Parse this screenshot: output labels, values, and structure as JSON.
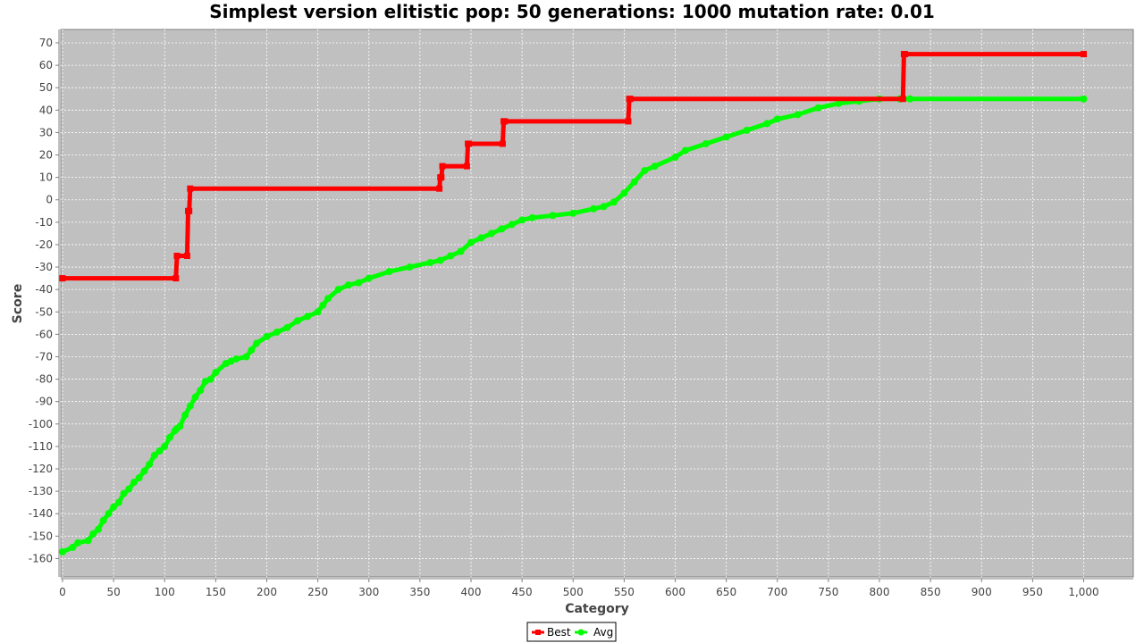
{
  "chart_data": {
    "type": "line",
    "title": "Simplest version elitistic pop: 50 generations: 1000 mutation rate: 0.01",
    "xlabel": "Category",
    "ylabel": "Score",
    "xlim": [
      0,
      1050
    ],
    "ylim": [
      -168,
      75
    ],
    "x_ticks": [
      0,
      50,
      100,
      150,
      200,
      250,
      300,
      350,
      400,
      450,
      500,
      550,
      600,
      650,
      700,
      750,
      800,
      850,
      900,
      950,
      1000
    ],
    "x_tick_labels": [
      "0",
      "50",
      "100",
      "150",
      "200",
      "250",
      "300",
      "350",
      "400",
      "450",
      "500",
      "550",
      "600",
      "650",
      "700",
      "750",
      "800",
      "850",
      "900",
      "950",
      "1,000"
    ],
    "y_ticks": [
      70,
      60,
      50,
      40,
      30,
      20,
      10,
      0,
      -10,
      -20,
      -30,
      -40,
      -50,
      -60,
      -70,
      -80,
      -90,
      -100,
      -110,
      -120,
      -130,
      -140,
      -150,
      -160
    ],
    "grid": true,
    "legend_position": "bottom-center",
    "series": [
      {
        "name": "Best",
        "color": "#ff0000",
        "marker": "square",
        "x": [
          0,
          111,
          112,
          122,
          123,
          124,
          125,
          369,
          370,
          371,
          372,
          396,
          397,
          398,
          431,
          432,
          433,
          554,
          555,
          556,
          823,
          824,
          825,
          1000
        ],
        "y": [
          -35,
          -35,
          -25,
          -25,
          -5,
          -5,
          5,
          5,
          10,
          10,
          15,
          15,
          25,
          25,
          25,
          35,
          35,
          35,
          45,
          45,
          45,
          65,
          65,
          65
        ]
      },
      {
        "name": "Avg",
        "color": "#00ff00",
        "marker": "circle",
        "x": [
          0,
          10,
          15,
          25,
          30,
          35,
          40,
          45,
          50,
          55,
          60,
          65,
          70,
          75,
          80,
          85,
          90,
          95,
          100,
          105,
          110,
          112,
          115,
          120,
          125,
          130,
          135,
          140,
          145,
          150,
          160,
          165,
          170,
          180,
          185,
          190,
          200,
          210,
          220,
          230,
          240,
          250,
          255,
          260,
          270,
          280,
          290,
          300,
          320,
          340,
          360,
          370,
          380,
          390,
          400,
          410,
          420,
          430,
          440,
          450,
          460,
          480,
          500,
          520,
          530,
          540,
          550,
          560,
          570,
          580,
          600,
          610,
          630,
          650,
          670,
          690,
          700,
          720,
          740,
          760,
          780,
          800,
          820,
          830,
          1000
        ],
        "y": [
          -157,
          -155,
          -153,
          -152,
          -149,
          -147,
          -143,
          -140,
          -137,
          -135,
          -131,
          -129,
          -126,
          -124,
          -121,
          -118,
          -114,
          -112,
          -110,
          -106,
          -103,
          -102,
          -101,
          -96,
          -92,
          -88,
          -85,
          -81,
          -80,
          -77,
          -73,
          -72,
          -71,
          -70,
          -67,
          -64,
          -61,
          -59,
          -57,
          -54,
          -52,
          -50,
          -47,
          -44,
          -40,
          -38,
          -37,
          -35,
          -32,
          -30,
          -28,
          -27,
          -25,
          -23,
          -19,
          -17,
          -15,
          -13,
          -11,
          -9,
          -8,
          -7,
          -6,
          -4,
          -3,
          -1,
          3,
          8,
          13,
          15,
          19,
          22,
          25,
          28,
          31,
          34,
          36,
          38,
          41,
          43,
          44,
          45,
          45,
          45,
          45
        ]
      }
    ]
  }
}
